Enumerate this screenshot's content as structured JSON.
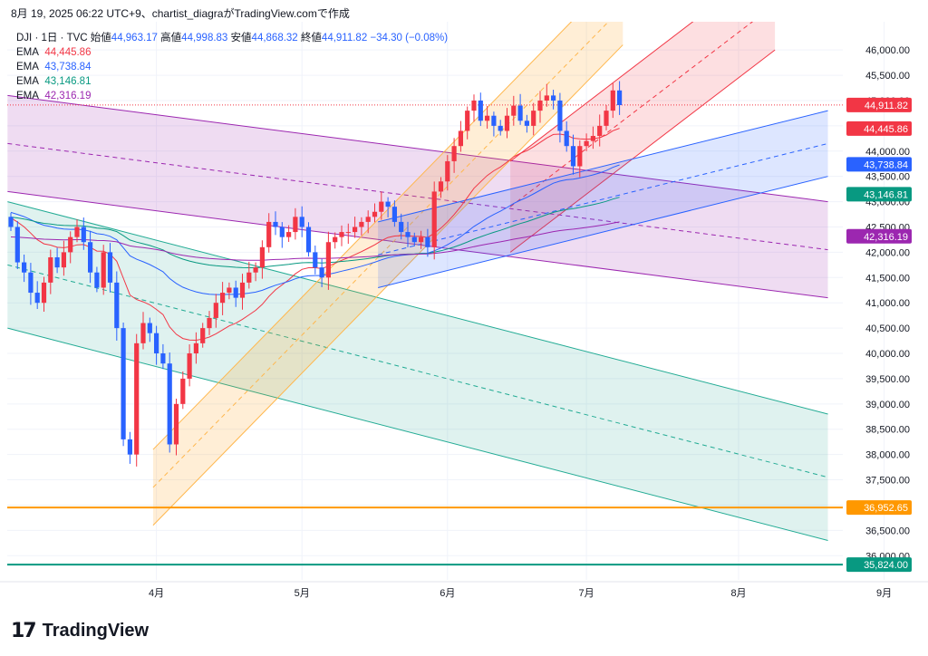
{
  "caption": "8月 19, 2025 06:22 UTC+9、chartist_diagraがTradingView.comで作成",
  "legend": {
    "symbol": "DJI · 1日 · TVC",
    "open_label": "始値",
    "open": "44,963.17",
    "high_label": "高値",
    "high": "44,998.83",
    "low_label": "安値",
    "low": "44,868.32",
    "close_label": "終値",
    "close": "44,911.82",
    "change": "−34.30 (−0.08%)",
    "ema_label": "EMA"
  },
  "brand": {
    "name": "TradingView",
    "logo_glyph": "17"
  },
  "chart_data": {
    "type": "candlestick",
    "title": "",
    "y_range": [
      35700,
      46200
    ],
    "y_ticks": [
      {
        "v": 46000,
        "t": "46,000.00"
      },
      {
        "v": 45500,
        "t": "45,500.00"
      },
      {
        "v": 45000,
        "t": "45,000.00"
      },
      {
        "v": 44500,
        "t": "44,500.00"
      },
      {
        "v": 44000,
        "t": "44,000.00"
      },
      {
        "v": 43500,
        "t": "43,500.00"
      },
      {
        "v": 43000,
        "t": "43,000.00"
      },
      {
        "v": 42500,
        "t": "42,500.00"
      },
      {
        "v": 42000,
        "t": "42,000.00"
      },
      {
        "v": 41500,
        "t": "41,500.00"
      },
      {
        "v": 41000,
        "t": "41,000.00"
      },
      {
        "v": 40500,
        "t": "40,500.00"
      },
      {
        "v": 40000,
        "t": "40,000.00"
      },
      {
        "v": 39500,
        "t": "39,500.00"
      },
      {
        "v": 39000,
        "t": "39,000.00"
      },
      {
        "v": 38500,
        "t": "38,500.00"
      },
      {
        "v": 38000,
        "t": "38,000.00"
      },
      {
        "v": 37500,
        "t": "37,500.00"
      },
      {
        "v": 37000,
        "t": "37,000.00"
      },
      {
        "v": 36500,
        "t": "36,500.00"
      },
      {
        "v": 36000,
        "t": "36,000.00"
      }
    ],
    "x_ticks": [
      {
        "day": 22,
        "t": "4月"
      },
      {
        "day": 44,
        "t": "5月"
      },
      {
        "day": 66,
        "t": "6月"
      },
      {
        "day": 87,
        "t": "7月"
      },
      {
        "day": 110,
        "t": "8月"
      },
      {
        "day": 132,
        "t": "9月"
      }
    ],
    "closes": [
      42500,
      41800,
      41600,
      41200,
      41000,
      41400,
      41900,
      41700,
      42000,
      42300,
      42500,
      42200,
      41600,
      41300,
      42000,
      41400,
      40500,
      38300,
      38000,
      40200,
      40600,
      40400,
      40000,
      39800,
      38200,
      39000,
      39500,
      40000,
      40200,
      40500,
      40700,
      41000,
      41200,
      41300,
      41100,
      41400,
      41600,
      41700,
      42100,
      42600,
      42500,
      42300,
      42400,
      42700,
      42500,
      42000,
      41700,
      41500,
      42200,
      42300,
      42400,
      42400,
      42500,
      42600,
      42700,
      42800,
      43000,
      42900,
      42600,
      42400,
      42300,
      42200,
      42300,
      42100,
      43200,
      43400,
      43800,
      44100,
      44400,
      44800,
      45000,
      44600,
      44700,
      44500,
      44400,
      44700,
      44900,
      44600,
      44500,
      44800,
      45000,
      45100,
      45000,
      44400,
      44100,
      43700,
      44100,
      44200,
      44300,
      44500,
      44800,
      45200,
      44910
    ],
    "price_labels": [
      {
        "name": "close",
        "value": 44911.82,
        "text": "44,911.82",
        "color": "#f23645"
      },
      {
        "name": "ema-20",
        "value": 44445.86,
        "text": "44,445.86",
        "color": "#f23645"
      },
      {
        "name": "ema-50",
        "value": 43738.84,
        "text": "43,738.84",
        "color": "#2962ff"
      },
      {
        "name": "ema-100",
        "value": 43146.81,
        "text": "43,146.81",
        "color": "#089981"
      },
      {
        "name": "ema-200",
        "value": 42316.19,
        "text": "42,316.19",
        "color": "#9c27b0"
      },
      {
        "name": "support",
        "value": 36952.65,
        "text": "36,952.65",
        "color": "#ff9800"
      },
      {
        "name": "bottom-line",
        "value": 35824.0,
        "text": "35,824.00",
        "color": "#089981"
      }
    ],
    "ema_values": [
      {
        "value": "44,445.86",
        "color": "#f23645"
      },
      {
        "value": "43,738.84",
        "color": "#2962ff"
      },
      {
        "value": "43,146.81",
        "color": "#089981"
      },
      {
        "value": "42,316.19",
        "color": "#9c27b0"
      }
    ],
    "colors": {
      "up": "#f23645",
      "down": "#2962ff"
    }
  }
}
